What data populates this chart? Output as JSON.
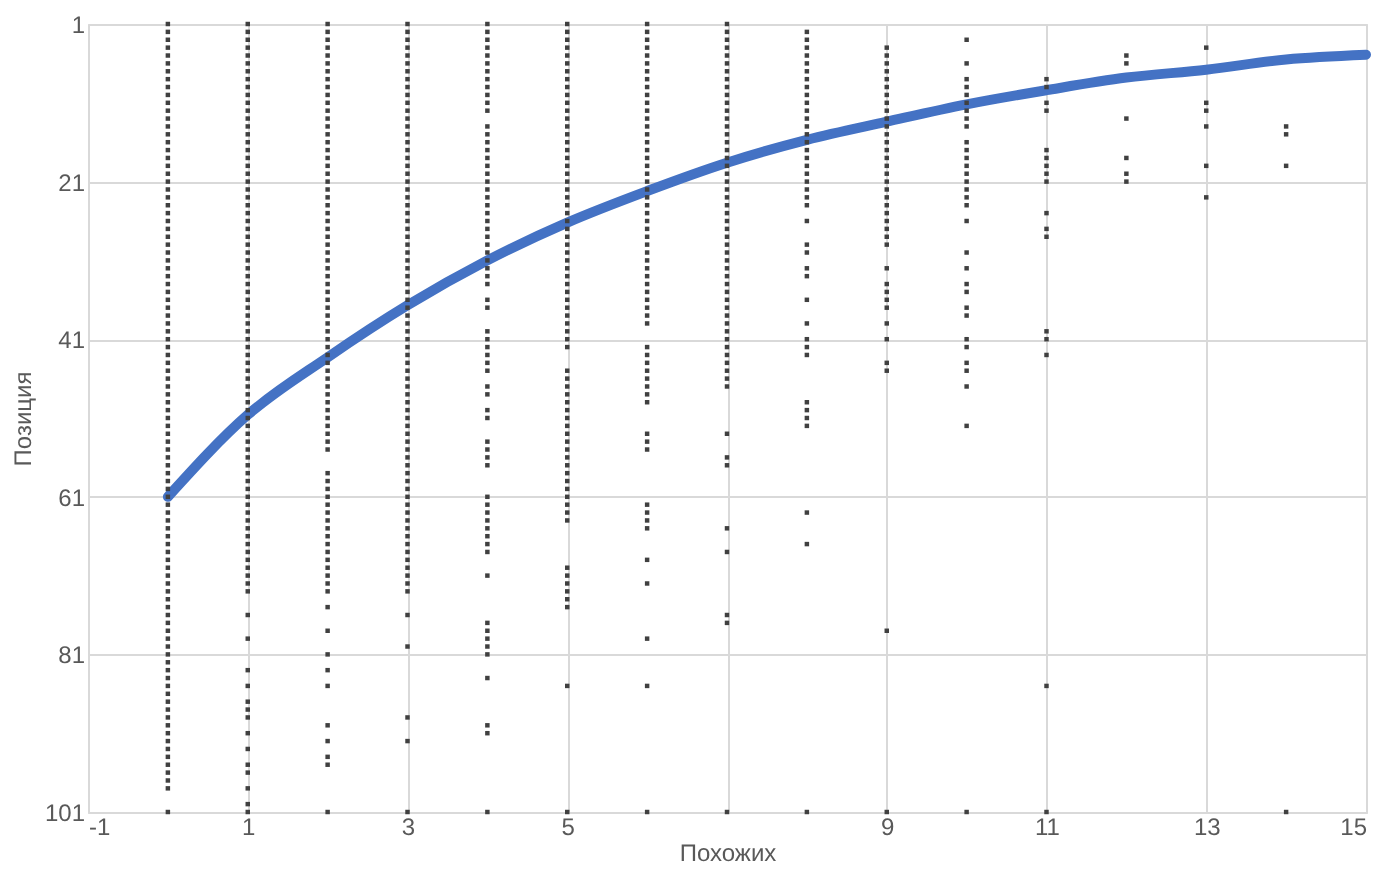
{
  "chart_data": {
    "type": "scatter",
    "xlabel": "Похожих",
    "ylabel": "Позиция",
    "xlim": [
      -1,
      15
    ],
    "ylim": [
      101,
      1
    ],
    "xticks": [
      -1,
      1,
      3,
      5,
      {
        "value": 7,
        "label": null
      },
      9,
      11,
      13,
      15
    ],
    "yticks": [
      1,
      21,
      41,
      61,
      81,
      101
    ],
    "grid": true,
    "marker": "square",
    "series": [
      {
        "type": "line",
        "marker": "none",
        "color": "#4472c4",
        "x": [
          0,
          1,
          2,
          3,
          4,
          5,
          6,
          7,
          8,
          9,
          10,
          11,
          12,
          13,
          14,
          15
        ],
        "values": [
          61,
          50.6,
          43.3,
          36.7,
          31,
          26.2,
          22.2,
          18.6,
          15.7,
          13.4,
          11.2,
          9.4,
          7.8,
          6.8,
          5.5,
          4.9
        ]
      },
      {
        "color": "#404040",
        "x": [
          0,
          0,
          0,
          0,
          0,
          0,
          0,
          0,
          0,
          0,
          0,
          0,
          0,
          0,
          0,
          0,
          0,
          0,
          0,
          0,
          0,
          0,
          0,
          0,
          0,
          0,
          0,
          0,
          0,
          0,
          0,
          0,
          0,
          0,
          0,
          0,
          0,
          0,
          0,
          0,
          0,
          0,
          0,
          0,
          0,
          0,
          0,
          0,
          0,
          0,
          0,
          0,
          0,
          0,
          0,
          0,
          0,
          0,
          0,
          0,
          0,
          0,
          0,
          0,
          0,
          0,
          0,
          0,
          0,
          0,
          0,
          0,
          0,
          0,
          0,
          0,
          0,
          0,
          0,
          0,
          0,
          0,
          0,
          0,
          0,
          0,
          0,
          0,
          0,
          0,
          0,
          0,
          0,
          0,
          0,
          0,
          0,
          0,
          0
        ],
        "values": [
          1,
          2,
          3,
          4,
          5,
          6,
          7,
          8,
          9,
          10,
          11,
          12,
          13,
          14,
          15,
          16,
          17,
          18,
          19,
          20,
          21,
          22,
          23,
          24,
          25,
          26,
          27,
          28,
          29,
          30,
          31,
          32,
          33,
          34,
          35,
          36,
          37,
          38,
          39,
          40,
          41,
          42,
          43,
          44,
          45,
          46,
          47,
          48,
          49,
          50,
          51,
          52,
          53,
          54,
          55,
          56,
          57,
          58,
          59,
          60,
          61,
          62,
          63,
          64,
          65,
          66,
          67,
          68,
          69,
          70,
          71,
          72,
          73,
          74,
          75,
          76,
          77,
          78,
          79,
          80,
          81,
          82,
          83,
          84,
          85,
          86,
          87,
          88,
          89,
          90,
          91,
          92,
          93,
          94,
          95,
          96,
          97,
          98,
          101
        ]
      },
      {
        "color": "#404040",
        "x": [
          1,
          1,
          1,
          1,
          1,
          1,
          1,
          1,
          1,
          1,
          1,
          1,
          1,
          1,
          1,
          1,
          1,
          1,
          1,
          1,
          1,
          1,
          1,
          1,
          1,
          1,
          1,
          1,
          1,
          1,
          1,
          1,
          1,
          1,
          1,
          1,
          1,
          1,
          1,
          1,
          1,
          1,
          1,
          1,
          1,
          1,
          1,
          1,
          1,
          1,
          1,
          1,
          1,
          1,
          1,
          1,
          1,
          1,
          1,
          1,
          1,
          1,
          1,
          1,
          1,
          1,
          1,
          1,
          1,
          1,
          1,
          1,
          1,
          1,
          1,
          1,
          1,
          1,
          1,
          1,
          1,
          1,
          1,
          1,
          1,
          1,
          1
        ],
        "values": [
          1,
          2,
          3,
          4,
          5,
          6,
          7,
          8,
          9,
          10,
          11,
          12,
          13,
          14,
          15,
          16,
          17,
          18,
          19,
          20,
          21,
          22,
          23,
          24,
          25,
          26,
          27,
          28,
          29,
          30,
          31,
          32,
          33,
          34,
          35,
          36,
          37,
          38,
          39,
          40,
          41,
          42,
          43,
          44,
          45,
          46,
          47,
          48,
          49,
          50,
          51,
          52,
          53,
          54,
          55,
          56,
          57,
          58,
          59,
          60,
          61,
          62,
          63,
          64,
          65,
          66,
          67,
          68,
          69,
          70,
          71,
          72,
          73,
          76,
          79,
          83,
          85,
          87,
          88,
          89,
          91,
          93,
          95,
          96,
          98,
          100,
          101
        ]
      },
      {
        "color": "#404040",
        "x": [
          2,
          2,
          2,
          2,
          2,
          2,
          2,
          2,
          2,
          2,
          2,
          2,
          2,
          2,
          2,
          2,
          2,
          2,
          2,
          2,
          2,
          2,
          2,
          2,
          2,
          2,
          2,
          2,
          2,
          2,
          2,
          2,
          2,
          2,
          2,
          2,
          2,
          2,
          2,
          2,
          2,
          2,
          2,
          2,
          2,
          2,
          2,
          2,
          2,
          2,
          2,
          2,
          2,
          2,
          2,
          2,
          2,
          2,
          2,
          2,
          2,
          2,
          2,
          2,
          2,
          2,
          2,
          2,
          2,
          2,
          2,
          2,
          2,
          2,
          2,
          2,
          2,
          2,
          2,
          2,
          2
        ],
        "values": [
          1,
          2,
          3,
          4,
          5,
          6,
          7,
          8,
          9,
          10,
          11,
          12,
          13,
          14,
          15,
          16,
          17,
          18,
          19,
          20,
          21,
          22,
          23,
          24,
          25,
          26,
          27,
          28,
          29,
          30,
          31,
          32,
          33,
          34,
          35,
          36,
          37,
          38,
          39,
          40,
          41,
          42,
          43,
          44,
          45,
          46,
          47,
          48,
          49,
          50,
          51,
          52,
          53,
          54,
          55,
          58,
          59,
          60,
          61,
          62,
          63,
          64,
          65,
          66,
          67,
          68,
          69,
          70,
          71,
          72,
          73,
          75,
          78,
          81,
          83,
          85,
          90,
          92,
          94,
          95,
          101
        ]
      },
      {
        "color": "#404040",
        "x": [
          3,
          3,
          3,
          3,
          3,
          3,
          3,
          3,
          3,
          3,
          3,
          3,
          3,
          3,
          3,
          3,
          3,
          3,
          3,
          3,
          3,
          3,
          3,
          3,
          3,
          3,
          3,
          3,
          3,
          3,
          3,
          3,
          3,
          3,
          3,
          3,
          3,
          3,
          3,
          3,
          3,
          3,
          3,
          3,
          3,
          3,
          3,
          3,
          3,
          3,
          3,
          3,
          3,
          3,
          3,
          3,
          3,
          3,
          3,
          3,
          3,
          3,
          3,
          3,
          3,
          3,
          3,
          3,
          3,
          3,
          3,
          3,
          3,
          3,
          3,
          3,
          3,
          3
        ],
        "values": [
          1,
          2,
          3,
          4,
          5,
          6,
          7,
          8,
          9,
          10,
          11,
          12,
          13,
          14,
          15,
          16,
          17,
          18,
          19,
          20,
          21,
          22,
          23,
          24,
          25,
          26,
          27,
          28,
          29,
          30,
          31,
          32,
          33,
          34,
          35,
          36,
          37,
          38,
          39,
          40,
          41,
          42,
          43,
          44,
          45,
          46,
          47,
          48,
          49,
          50,
          51,
          52,
          53,
          54,
          55,
          56,
          57,
          58,
          59,
          60,
          61,
          62,
          63,
          64,
          65,
          66,
          67,
          68,
          69,
          70,
          71,
          72,
          73,
          76,
          80,
          89,
          92,
          101
        ]
      },
      {
        "color": "#404040",
        "x": [
          4,
          4,
          4,
          4,
          4,
          4,
          4,
          4,
          4,
          4,
          4,
          4,
          4,
          4,
          4,
          4,
          4,
          4,
          4,
          4,
          4,
          4,
          4,
          4,
          4,
          4,
          4,
          4,
          4,
          4,
          4,
          4,
          4,
          4,
          4,
          4,
          4,
          4,
          4,
          4,
          4,
          4,
          4,
          4,
          4,
          4,
          4,
          4,
          4,
          4,
          4,
          4,
          4,
          4,
          4,
          4,
          4,
          4,
          4,
          4,
          4,
          4,
          4,
          4,
          4,
          4,
          4
        ],
        "values": [
          1,
          2,
          3,
          4,
          5,
          6,
          7,
          8,
          9,
          10,
          11,
          12,
          14,
          15,
          16,
          17,
          18,
          19,
          20,
          21,
          22,
          23,
          24,
          25,
          26,
          27,
          28,
          29,
          30,
          31,
          32,
          33,
          34,
          36,
          37,
          40,
          41,
          42,
          43,
          44,
          45,
          47,
          48,
          50,
          51,
          54,
          55,
          56,
          57,
          61,
          62,
          63,
          64,
          65,
          66,
          67,
          68,
          71,
          77,
          78,
          79,
          80,
          81,
          84,
          90,
          91,
          101
        ]
      },
      {
        "color": "#404040",
        "x": [
          5,
          5,
          5,
          5,
          5,
          5,
          5,
          5,
          5,
          5,
          5,
          5,
          5,
          5,
          5,
          5,
          5,
          5,
          5,
          5,
          5,
          5,
          5,
          5,
          5,
          5,
          5,
          5,
          5,
          5,
          5,
          5,
          5,
          5,
          5,
          5,
          5,
          5,
          5,
          5,
          5,
          5,
          5,
          5,
          5,
          5,
          5,
          5,
          5,
          5,
          5,
          5,
          5,
          5,
          5,
          5,
          5,
          5,
          5,
          5,
          5,
          5,
          5,
          5,
          5,
          5,
          5,
          5,
          5,
          5
        ],
        "values": [
          1,
          2,
          3,
          4,
          5,
          6,
          7,
          8,
          9,
          10,
          11,
          12,
          13,
          14,
          15,
          16,
          17,
          18,
          19,
          20,
          21,
          22,
          23,
          24,
          25,
          26,
          27,
          28,
          29,
          30,
          31,
          32,
          33,
          34,
          35,
          36,
          37,
          38,
          39,
          40,
          41,
          42,
          45,
          46,
          47,
          48,
          49,
          50,
          51,
          52,
          53,
          54,
          55,
          56,
          57,
          58,
          59,
          60,
          61,
          62,
          63,
          64,
          70,
          71,
          72,
          73,
          74,
          75,
          85,
          101
        ]
      },
      {
        "color": "#404040",
        "x": [
          6,
          6,
          6,
          6,
          6,
          6,
          6,
          6,
          6,
          6,
          6,
          6,
          6,
          6,
          6,
          6,
          6,
          6,
          6,
          6,
          6,
          6,
          6,
          6,
          6,
          6,
          6,
          6,
          6,
          6,
          6,
          6,
          6,
          6,
          6,
          6,
          6,
          6,
          6,
          6,
          6,
          6,
          6,
          6,
          6,
          6,
          6,
          6,
          6,
          6,
          6,
          6,
          6,
          6,
          6,
          6,
          6,
          6,
          6
        ],
        "values": [
          1,
          2,
          3,
          4,
          5,
          6,
          7,
          8,
          9,
          10,
          11,
          12,
          13,
          14,
          15,
          16,
          17,
          18,
          19,
          20,
          21,
          22,
          23,
          24,
          25,
          26,
          27,
          28,
          29,
          30,
          31,
          32,
          33,
          34,
          35,
          36,
          37,
          38,
          39,
          42,
          43,
          44,
          45,
          46,
          47,
          48,
          49,
          53,
          54,
          55,
          62,
          63,
          64,
          65,
          69,
          72,
          79,
          85,
          101
        ]
      },
      {
        "color": "#404040",
        "x": [
          7,
          7,
          7,
          7,
          7,
          7,
          7,
          7,
          7,
          7,
          7,
          7,
          7,
          7,
          7,
          7,
          7,
          7,
          7,
          7,
          7,
          7,
          7,
          7,
          7,
          7,
          7,
          7,
          7,
          7,
          7,
          7,
          7,
          7,
          7,
          7,
          7,
          7,
          7,
          7,
          7,
          7,
          7,
          7,
          7,
          7,
          7,
          7,
          7,
          7,
          7,
          7,
          7,
          7,
          7
        ],
        "values": [
          1,
          2,
          3,
          4,
          5,
          6,
          7,
          8,
          9,
          10,
          11,
          12,
          13,
          14,
          15,
          16,
          17,
          18,
          19,
          20,
          21,
          22,
          23,
          24,
          25,
          26,
          27,
          28,
          29,
          30,
          31,
          32,
          33,
          34,
          35,
          36,
          37,
          38,
          39,
          40,
          41,
          42,
          43,
          44,
          45,
          46,
          47,
          53,
          56,
          57,
          65,
          68,
          76,
          77,
          101
        ]
      },
      {
        "color": "#404040",
        "x": [
          8,
          8,
          8,
          8,
          8,
          8,
          8,
          8,
          8,
          8,
          8,
          8,
          8,
          8,
          8,
          8,
          8,
          8,
          8,
          8,
          8,
          8,
          8,
          8,
          8,
          8,
          8,
          8,
          8,
          8,
          8,
          8,
          8,
          8,
          8,
          8,
          8,
          8,
          8,
          8
        ],
        "values": [
          2,
          3,
          4,
          5,
          6,
          7,
          8,
          9,
          10,
          11,
          12,
          13,
          14,
          15,
          16,
          17,
          18,
          19,
          20,
          21,
          22,
          23,
          24,
          26,
          29,
          30,
          32,
          33,
          36,
          39,
          41,
          42,
          43,
          49,
          50,
          51,
          52,
          63,
          67,
          101
        ]
      },
      {
        "color": "#404040",
        "x": [
          9,
          9,
          9,
          9,
          9,
          9,
          9,
          9,
          9,
          9,
          9,
          9,
          9,
          9,
          9,
          9,
          9,
          9,
          9,
          9,
          9,
          9,
          9,
          9,
          9,
          9,
          9,
          9,
          9,
          9,
          9,
          9,
          9,
          9,
          9,
          9,
          9
        ],
        "values": [
          4,
          5,
          6,
          7,
          8,
          9,
          10,
          11,
          12,
          13,
          14,
          15,
          16,
          17,
          18,
          19,
          20,
          21,
          22,
          23,
          24,
          25,
          26,
          27,
          28,
          29,
          32,
          34,
          35,
          36,
          37,
          39,
          41,
          44,
          45,
          78,
          101
        ]
      },
      {
        "color": "#404040",
        "x": [
          10,
          10,
          10,
          10,
          10,
          10,
          10,
          10,
          10,
          10,
          10,
          10,
          10,
          10,
          10,
          10,
          10,
          10,
          10,
          10,
          10,
          10,
          10,
          10,
          10,
          10,
          10,
          10,
          10,
          10,
          10,
          10
        ],
        "values": [
          3,
          6,
          8,
          9,
          10,
          11,
          12,
          13,
          14,
          16,
          17,
          18,
          19,
          20,
          21,
          22,
          23,
          24,
          26,
          30,
          32,
          34,
          35,
          37,
          38,
          41,
          42,
          44,
          45,
          47,
          52,
          101
        ]
      },
      {
        "color": "#404040",
        "x": [
          11,
          11,
          11,
          11,
          11,
          11,
          11,
          11,
          11,
          11,
          11,
          11,
          11,
          11,
          11,
          11,
          11
        ],
        "values": [
          8,
          9,
          11,
          12,
          17,
          18,
          19,
          20,
          21,
          25,
          27,
          28,
          40,
          41,
          43,
          85,
          101
        ]
      },
      {
        "color": "#404040",
        "x": [
          12,
          12,
          12,
          12,
          12,
          12
        ],
        "values": [
          5,
          6,
          13,
          18,
          20,
          21
        ]
      },
      {
        "color": "#404040",
        "x": [
          13,
          13,
          13,
          13,
          13,
          13
        ],
        "values": [
          4,
          11,
          12,
          14,
          19,
          23
        ]
      },
      {
        "color": "#404040",
        "x": [
          14,
          14,
          14,
          14
        ],
        "values": [
          14,
          15,
          19,
          101
        ]
      }
    ]
  }
}
